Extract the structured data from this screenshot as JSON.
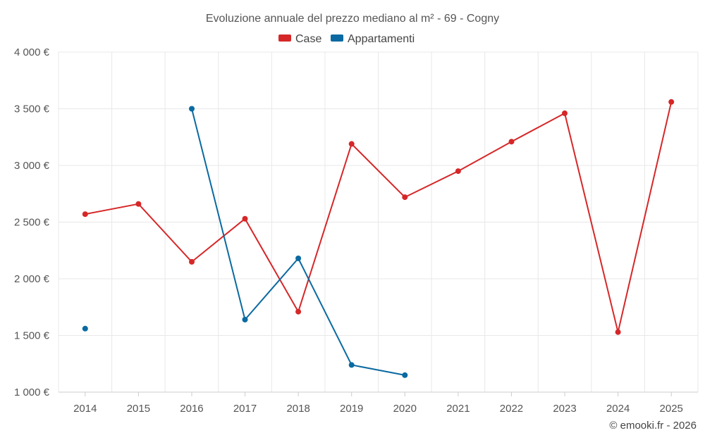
{
  "chart_data": {
    "type": "line",
    "title": "Evoluzione annuale del prezzo mediano al m² - 69 - Cogny",
    "x": [
      "2014",
      "2015",
      "2016",
      "2017",
      "2018",
      "2019",
      "2020",
      "2021",
      "2022",
      "2023",
      "2024",
      "2025"
    ],
    "y_ticks": [
      "1 000 €",
      "1 500 €",
      "2 000 €",
      "2 500 €",
      "3 000 €",
      "3 500 €",
      "4 000 €"
    ],
    "ylim": [
      1000,
      4000
    ],
    "y_step": 500,
    "grid": true,
    "legend_position": "top-center",
    "series": [
      {
        "name": "Case",
        "color": "#d62728",
        "values": [
          2570,
          2660,
          2150,
          2530,
          1710,
          3190,
          2720,
          2950,
          3210,
          3460,
          1530,
          3560
        ]
      },
      {
        "name": "Appartamenti",
        "color": "#0a6aa1",
        "values": [
          1560,
          null,
          3500,
          1640,
          2180,
          1240,
          1150,
          null,
          null,
          null,
          null,
          null
        ]
      }
    ]
  },
  "credit": "© emooki.fr - 2026"
}
